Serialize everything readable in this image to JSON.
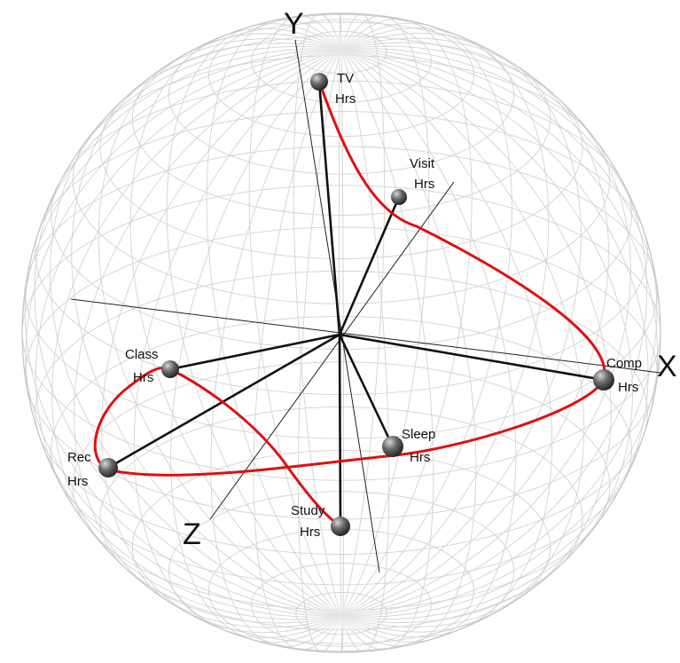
{
  "axes": {
    "x": "X",
    "y": "Y",
    "z": "Z"
  },
  "nodes": {
    "tv": {
      "line1": "TV",
      "line2": "Hrs"
    },
    "visit": {
      "line1": "Visit",
      "line2": "Hrs"
    },
    "comp": {
      "line1": "Comp",
      "line2": "Hrs"
    },
    "sleep": {
      "line1": "Sleep",
      "line2": "Hrs"
    },
    "study": {
      "line1": "Study",
      "line2": "Hrs"
    },
    "rec": {
      "line1": "Rec",
      "line2": "Hrs"
    },
    "class": {
      "line1": "Class",
      "line2": "Hrs"
    }
  },
  "colors": {
    "path": "#e01010",
    "spokes": "#111111",
    "wireframe": "#d2d2d2",
    "node": "#555555"
  }
}
